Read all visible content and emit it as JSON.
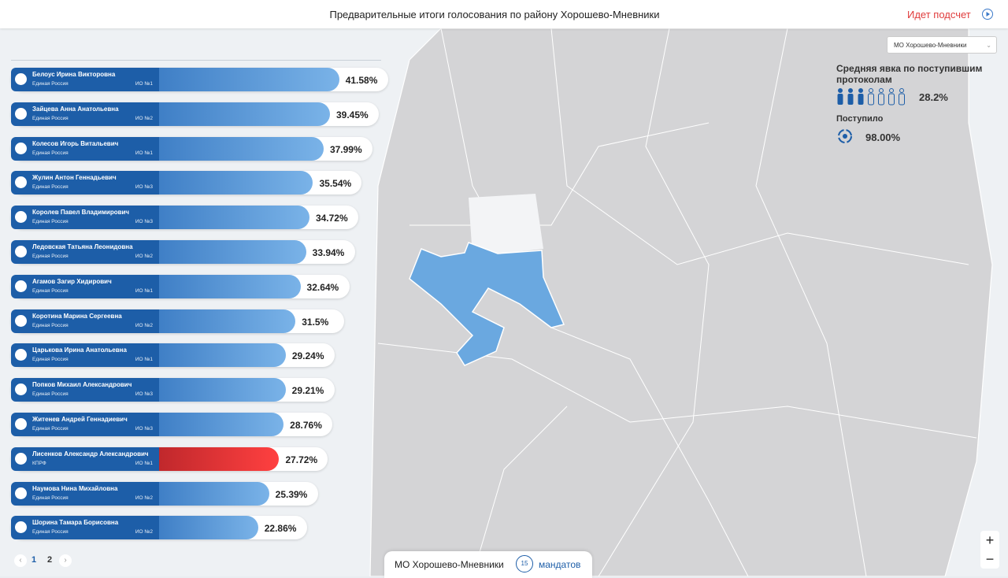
{
  "header": {
    "title": "Предварительные итоги голосования по району Хорошево-Мневники",
    "status": "Идет подсчет"
  },
  "candidates": [
    {
      "name": "Белоус Ирина Викторовна",
      "party": "Единая Россия",
      "district": "ИО №1",
      "value": 41.58,
      "value_label": "41.58%",
      "color": "#7ab3e8"
    },
    {
      "name": "Зайцева Анна Анатольевна",
      "party": "Единая Россия",
      "district": "ИО №2",
      "value": 39.45,
      "value_label": "39.45%",
      "color": "#7ab3e8"
    },
    {
      "name": "Колесов Игорь Витальевич",
      "party": "Единая Россия",
      "district": "ИО №1",
      "value": 37.99,
      "value_label": "37.99%",
      "color": "#7ab3e8"
    },
    {
      "name": "Жулин Антон Геннадьевич",
      "party": "Единая Россия",
      "district": "ИО №3",
      "value": 35.54,
      "value_label": "35.54%",
      "color": "#7ab3e8"
    },
    {
      "name": "Королев Павел Владимирович",
      "party": "Единая Россия",
      "district": "ИО №3",
      "value": 34.72,
      "value_label": "34.72%",
      "color": "#7ab3e8"
    },
    {
      "name": "Ледовская Татьяна Леонидовна",
      "party": "Единая Россия",
      "district": "ИО №2",
      "value": 33.94,
      "value_label": "33.94%",
      "color": "#7ab3e8"
    },
    {
      "name": "Агамов Загир Хидирович",
      "party": "Единая Россия",
      "district": "ИО №1",
      "value": 32.64,
      "value_label": "32.64%",
      "color": "#7ab3e8"
    },
    {
      "name": "Коротина Марина Сергеевна",
      "party": "Единая Россия",
      "district": "ИО №2",
      "value": 31.5,
      "value_label": "31.5%",
      "color": "#7ab3e8"
    },
    {
      "name": "Царькова Ирина Анатольевна",
      "party": "Единая Россия",
      "district": "ИО №1",
      "value": 29.24,
      "value_label": "29.24%",
      "color": "#7ab3e8"
    },
    {
      "name": "Попков Михаил Александрович",
      "party": "Единая Россия",
      "district": "ИО №3",
      "value": 29.21,
      "value_label": "29.21%",
      "color": "#7ab3e8"
    },
    {
      "name": "Житенев Андрей Геннадиевич",
      "party": "Единая Россия",
      "district": "ИО №3",
      "value": 28.76,
      "value_label": "28.76%",
      "color": "#7ab3e8"
    },
    {
      "name": "Лисенков Александр Александрович",
      "party": "КПРФ",
      "district": "ИО №1",
      "value": 27.72,
      "value_label": "27.72%",
      "color": "#ff4040"
    },
    {
      "name": "Наумова Нина Михайловна",
      "party": "Единая Россия",
      "district": "ИО №2",
      "value": 25.39,
      "value_label": "25.39%",
      "color": "#7ab3e8"
    },
    {
      "name": "Шорина Тамара Борисовна",
      "party": "Единая Россия",
      "district": "ИО №2",
      "value": 22.86,
      "value_label": "22.86%",
      "color": "#7ab3e8"
    }
  ],
  "pagination": [
    "1",
    "2"
  ],
  "panel": {
    "district_select": "МО Хорошево-Мневники",
    "turnout_label": "Средняя явка по поступившим протоколам",
    "turnout": "28.2%",
    "received_label": "Поступило",
    "received": "98.00%"
  },
  "footer": {
    "district": "МО Хорошево-Мневники",
    "mandates": "15",
    "mandates_label": "мандатов"
  }
}
